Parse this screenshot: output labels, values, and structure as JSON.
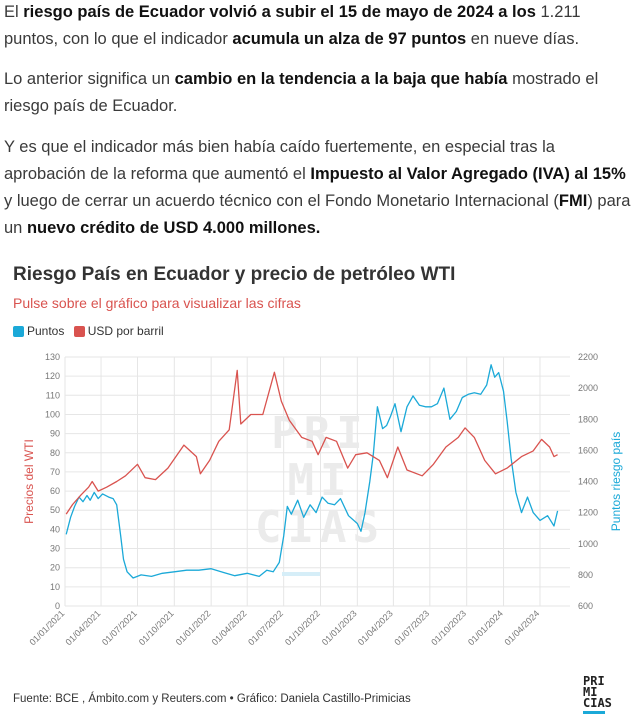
{
  "article": {
    "p1": {
      "parts": [
        {
          "t": "El ",
          "b": false
        },
        {
          "t": "riesgo país de Ecuador volvió a subir el 15 de mayo de 2024 a los",
          "b": true
        },
        {
          "t": " 1.211 puntos, con lo que el indicador ",
          "b": false
        },
        {
          "t": "acumula un alza de 97 puntos",
          "b": true
        },
        {
          "t": " en nueve días.",
          "b": false
        }
      ]
    },
    "p2": {
      "parts": [
        {
          "t": "Lo anterior significa un ",
          "b": false
        },
        {
          "t": "cambio en la tendencia a la baja que había",
          "b": true
        },
        {
          "t": " mostrado el riesgo país de Ecuador.",
          "b": false
        }
      ]
    },
    "p3": {
      "parts": [
        {
          "t": "Y es que el indicador más bien había caído fuertemente, en especial tras la aprobación de la reforma que aumentó el ",
          "b": false
        },
        {
          "t": "Impuesto al Valor Agregado (IVA) al 15%",
          "b": true
        },
        {
          "t": " y luego de cerrar un acuerdo técnico con el Fondo Monetario Internacional (",
          "b": false
        },
        {
          "t": "FMI",
          "b": true
        },
        {
          "t": ") para un ",
          "b": false
        },
        {
          "t": "nuevo crédito de USD 4.000 millones.",
          "b": true
        }
      ]
    }
  },
  "chart": {
    "title": "Riesgo País en Ecuador y precio de petróleo WTI",
    "subtitle": "Pulse sobre el gráfico para visualizar las cifras",
    "legend": [
      {
        "label": "Puntos",
        "color": "#1ba9d8"
      },
      {
        "label": "USD por barril",
        "color": "#d9534f"
      }
    ],
    "watermark": [
      "PRI",
      "MI",
      "CIAS"
    ],
    "footer": "Fuente: BCE , Ámbito.com y Reuters.com • Gráfico: Daniela Castillo-Primicias"
  },
  "logo": [
    "PRI",
    "MI",
    "CIAS"
  ],
  "chart_data": {
    "type": "line",
    "title": "Riesgo País en Ecuador y precio de petróleo WTI",
    "subtitle": "Pulse sobre el gráfico para visualizar las cifras",
    "y_left_label": "Precios del WTI",
    "y_right_label": "Puntos riesgo país",
    "y_left_range": [
      0,
      130
    ],
    "y_left_ticks": [
      0,
      10,
      20,
      30,
      40,
      50,
      60,
      70,
      80,
      90,
      100,
      110,
      120,
      130
    ],
    "y_right_range": [
      600,
      2200
    ],
    "y_right_ticks": [
      600,
      800,
      1000,
      1200,
      1400,
      1600,
      1800,
      2000,
      2200
    ],
    "x_range": [
      "2021-01-01",
      "2024-06-15"
    ],
    "x_ticks": [
      "01/01/2021",
      "01/04/2021",
      "01/07/2021",
      "01/10/2021",
      "01/01/2022",
      "01/04/2022",
      "01/07/2022",
      "01/10/2022",
      "01/01/2023",
      "01/04/2023",
      "01/07/2023",
      "01/10/2023",
      "01/01/2024",
      "01/04/2024"
    ],
    "grid": true,
    "legend_position": "top-left",
    "series": [
      {
        "name": "Puntos",
        "axis": "right",
        "color": "#1ba9d8",
        "points": [
          [
            "2021-01-04",
            1060
          ],
          [
            "2021-01-15",
            1170
          ],
          [
            "2021-01-25",
            1240
          ],
          [
            "2021-02-05",
            1300
          ],
          [
            "2021-02-15",
            1270
          ],
          [
            "2021-02-25",
            1310
          ],
          [
            "2021-03-05",
            1280
          ],
          [
            "2021-03-15",
            1330
          ],
          [
            "2021-03-25",
            1290
          ],
          [
            "2021-04-05",
            1320
          ],
          [
            "2021-04-20",
            1300
          ],
          [
            "2021-05-01",
            1290
          ],
          [
            "2021-05-10",
            1250
          ],
          [
            "2021-05-20",
            1050
          ],
          [
            "2021-05-27",
            900
          ],
          [
            "2021-06-05",
            820
          ],
          [
            "2021-06-20",
            780
          ],
          [
            "2021-07-10",
            800
          ],
          [
            "2021-08-05",
            790
          ],
          [
            "2021-09-01",
            810
          ],
          [
            "2021-10-01",
            820
          ],
          [
            "2021-11-01",
            830
          ],
          [
            "2021-12-01",
            830
          ],
          [
            "2022-01-01",
            840
          ],
          [
            "2022-02-01",
            815
          ],
          [
            "2022-03-01",
            795
          ],
          [
            "2022-04-01",
            810
          ],
          [
            "2022-05-01",
            790
          ],
          [
            "2022-05-20",
            830
          ],
          [
            "2022-06-05",
            820
          ],
          [
            "2022-06-20",
            880
          ],
          [
            "2022-07-01",
            1050
          ],
          [
            "2022-07-10",
            1240
          ],
          [
            "2022-07-20",
            1190
          ],
          [
            "2022-08-05",
            1280
          ],
          [
            "2022-08-20",
            1170
          ],
          [
            "2022-09-05",
            1250
          ],
          [
            "2022-09-20",
            1200
          ],
          [
            "2022-10-05",
            1300
          ],
          [
            "2022-10-20",
            1260
          ],
          [
            "2022-11-05",
            1250
          ],
          [
            "2022-11-20",
            1290
          ],
          [
            "2022-12-10",
            1180
          ],
          [
            "2023-01-01",
            1130
          ],
          [
            "2023-01-10",
            1080
          ],
          [
            "2023-01-20",
            1200
          ],
          [
            "2023-02-01",
            1400
          ],
          [
            "2023-02-10",
            1580
          ],
          [
            "2023-02-20",
            1880
          ],
          [
            "2023-03-05",
            1740
          ],
          [
            "2023-03-15",
            1760
          ],
          [
            "2023-03-25",
            1820
          ],
          [
            "2023-04-05",
            1900
          ],
          [
            "2023-04-20",
            1720
          ],
          [
            "2023-05-05",
            1880
          ],
          [
            "2023-05-20",
            1950
          ],
          [
            "2023-06-05",
            1890
          ],
          [
            "2023-06-20",
            1880
          ],
          [
            "2023-07-05",
            1880
          ],
          [
            "2023-07-20",
            1900
          ],
          [
            "2023-08-05",
            2000
          ],
          [
            "2023-08-20",
            1800
          ],
          [
            "2023-09-05",
            1850
          ],
          [
            "2023-09-20",
            1940
          ],
          [
            "2023-10-05",
            1960
          ],
          [
            "2023-10-20",
            1970
          ],
          [
            "2023-11-05",
            1960
          ],
          [
            "2023-11-20",
            2020
          ],
          [
            "2023-12-01",
            2150
          ],
          [
            "2023-12-10",
            2070
          ],
          [
            "2023-12-20",
            2100
          ],
          [
            "2024-01-01",
            1980
          ],
          [
            "2024-01-10",
            1790
          ],
          [
            "2024-01-20",
            1550
          ],
          [
            "2024-02-01",
            1330
          ],
          [
            "2024-02-15",
            1200
          ],
          [
            "2024-03-01",
            1300
          ],
          [
            "2024-03-15",
            1200
          ],
          [
            "2024-04-01",
            1150
          ],
          [
            "2024-04-20",
            1180
          ],
          [
            "2024-05-06",
            1114
          ],
          [
            "2024-05-15",
            1211
          ]
        ]
      },
      {
        "name": "USD por barril",
        "axis": "left",
        "color": "#d9534f",
        "points": [
          [
            "2021-01-04",
            48
          ],
          [
            "2021-01-20",
            53
          ],
          [
            "2021-02-10",
            58
          ],
          [
            "2021-03-01",
            62
          ],
          [
            "2021-03-10",
            65
          ],
          [
            "2021-03-25",
            60
          ],
          [
            "2021-04-15",
            62
          ],
          [
            "2021-05-10",
            65
          ],
          [
            "2021-06-01",
            68
          ],
          [
            "2021-07-01",
            74
          ],
          [
            "2021-07-20",
            67
          ],
          [
            "2021-08-15",
            66
          ],
          [
            "2021-09-15",
            72
          ],
          [
            "2021-10-25",
            84
          ],
          [
            "2021-11-25",
            78
          ],
          [
            "2021-12-05",
            69
          ],
          [
            "2021-12-28",
            76
          ],
          [
            "2022-01-20",
            86
          ],
          [
            "2022-02-15",
            92
          ],
          [
            "2022-03-07",
            123
          ],
          [
            "2022-03-16",
            95
          ],
          [
            "2022-04-10",
            100
          ],
          [
            "2022-05-10",
            100
          ],
          [
            "2022-06-08",
            122
          ],
          [
            "2022-06-25",
            107
          ],
          [
            "2022-07-15",
            97
          ],
          [
            "2022-08-15",
            88
          ],
          [
            "2022-09-10",
            86
          ],
          [
            "2022-09-25",
            79
          ],
          [
            "2022-10-15",
            88
          ],
          [
            "2022-11-10",
            86
          ],
          [
            "2022-12-08",
            72
          ],
          [
            "2022-12-28",
            79
          ],
          [
            "2023-01-25",
            80
          ],
          [
            "2023-02-25",
            76
          ],
          [
            "2023-03-17",
            67
          ],
          [
            "2023-04-12",
            83
          ],
          [
            "2023-05-05",
            71
          ],
          [
            "2023-06-12",
            68
          ],
          [
            "2023-07-10",
            74
          ],
          [
            "2023-08-10",
            83
          ],
          [
            "2023-09-10",
            88
          ],
          [
            "2023-09-27",
            93
          ],
          [
            "2023-10-20",
            88
          ],
          [
            "2023-11-15",
            76
          ],
          [
            "2023-12-12",
            69
          ],
          [
            "2024-01-10",
            72
          ],
          [
            "2024-02-15",
            78
          ],
          [
            "2024-03-15",
            81
          ],
          [
            "2024-04-05",
            87
          ],
          [
            "2024-04-25",
            83
          ],
          [
            "2024-05-06",
            78
          ],
          [
            "2024-05-15",
            79
          ]
        ]
      }
    ]
  }
}
